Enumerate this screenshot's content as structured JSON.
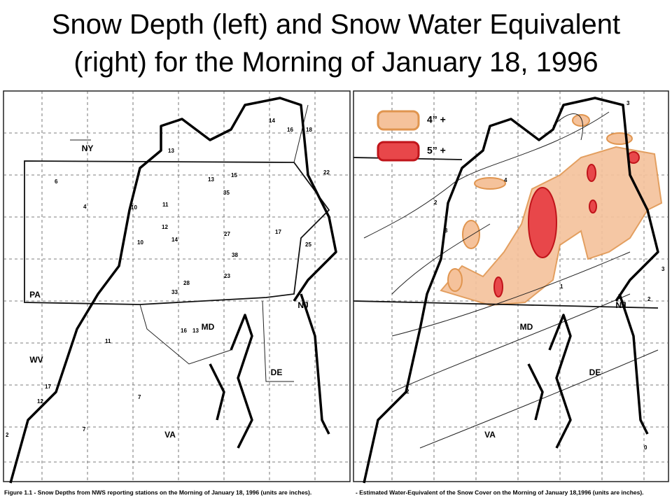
{
  "title": [
    "Snow Depth (left) and Snow Water Equivalent",
    "(right) for the Morning of January 18, 1996"
  ],
  "left_map": {
    "state_labels": [
      "NY",
      "PA",
      "WV",
      "MD",
      "VA",
      "NJ",
      "DE"
    ],
    "station_values": [
      14,
      16,
      18,
      22,
      35,
      15,
      13,
      11,
      10,
      10,
      14,
      12,
      27,
      38,
      23,
      28,
      33,
      25,
      17,
      6,
      4,
      13,
      11,
      16,
      13,
      7,
      7,
      12,
      17,
      2
    ],
    "caption": "Figure 1.1 - Snow Depths from NWS reporting stations on the Morning of January 18, 1996 (units are inches)."
  },
  "right_map": {
    "legend": [
      {
        "label": "4” +",
        "color": "#f5c29b"
      },
      {
        "label": "5” +",
        "color": "#e8474a"
      }
    ],
    "state_labels": [
      "MD",
      "NJ",
      "DE",
      "VA"
    ],
    "contour_labels": [
      3,
      2,
      3,
      4,
      2,
      1,
      0,
      2,
      3
    ],
    "caption": "- Estimated Water-Equivalent of the Snow Cover on the Morning of January 18,1996 (units are inches)."
  }
}
